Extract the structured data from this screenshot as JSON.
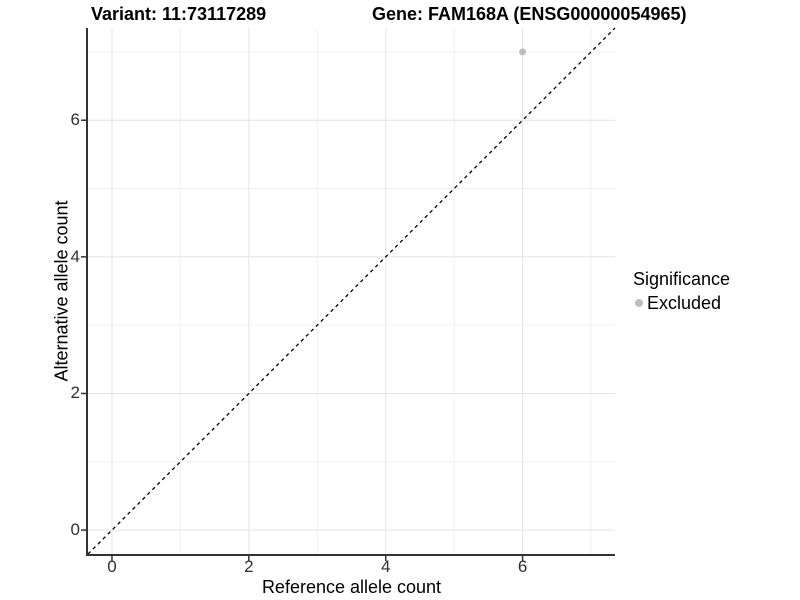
{
  "chart_data": {
    "type": "scatter",
    "title_left": "Variant: 11:73117289",
    "title_right": "Gene: FAM168A (ENSG00000054965)",
    "xlabel": "Reference allele count",
    "ylabel": "Alternative allele count",
    "xlim": [
      -0.35,
      7.35
    ],
    "ylim": [
      -0.35,
      7.35
    ],
    "x_ticks": [
      0,
      2,
      4,
      6
    ],
    "y_ticks": [
      0,
      2,
      4,
      6
    ],
    "x_minor_ticks": [
      1,
      3,
      5,
      7
    ],
    "y_minor_ticks": [
      1,
      3,
      5,
      7
    ],
    "grid": "major + minor, light gray on white panel",
    "points": [
      {
        "x": 6,
        "y": 7,
        "series": "Excluded"
      }
    ],
    "reference_line": {
      "slope": 1,
      "intercept": 0,
      "style": "dashed",
      "color": "#000000"
    },
    "legend": {
      "title": "Significance",
      "position": "right",
      "items": [
        {
          "label": "Excluded",
          "color": "#bdbdbd"
        }
      ]
    }
  },
  "colors": {
    "background": "#ffffff",
    "grid_major": "#e4e4e4",
    "grid_minor": "#f0f0f0",
    "axis_line": "#333333",
    "tick_mark": "#333333",
    "tick_label": "#303030",
    "point": "#bdbdbd",
    "text": "#000000"
  }
}
